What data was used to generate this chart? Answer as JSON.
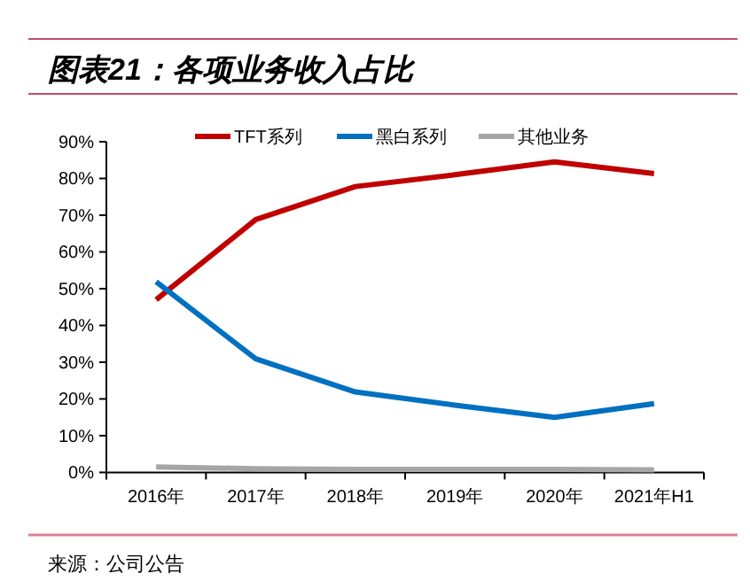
{
  "chart_data": {
    "type": "line",
    "title": "图表21：各项业务收入占比",
    "categories": [
      "2016年",
      "2017年",
      "2018年",
      "2019年",
      "2020年",
      "2021年H1"
    ],
    "series": [
      {
        "name": "TFT系列",
        "color": "#c00000",
        "values": [
          47,
          68.8,
          77.8,
          81,
          84.5,
          81.3
        ]
      },
      {
        "name": "黑白系列",
        "color": "#0070c0",
        "values": [
          51.9,
          30.9,
          21.9,
          18.3,
          15,
          18.7
        ]
      },
      {
        "name": "其他业务",
        "color": "#a6a6a6",
        "values": [
          1.5,
          1,
          0.8,
          0.8,
          0.8,
          0.7
        ]
      }
    ],
    "ylim": [
      0,
      90
    ],
    "yticks": [
      {
        "value": 0,
        "label": "0%"
      },
      {
        "value": 10,
        "label": "10%"
      },
      {
        "value": 20,
        "label": "20%"
      },
      {
        "value": 30,
        "label": "30%"
      },
      {
        "value": 40,
        "label": "40%"
      },
      {
        "value": 50,
        "label": "50%"
      },
      {
        "value": 60,
        "label": "60%"
      },
      {
        "value": 70,
        "label": "70%"
      },
      {
        "value": 80,
        "label": "80%"
      },
      {
        "value": 90,
        "label": "90%"
      }
    ],
    "grid": false,
    "legend": "top",
    "marker": "none",
    "line_style": "solid",
    "annotations": [
      "来源：公司公告"
    ]
  }
}
